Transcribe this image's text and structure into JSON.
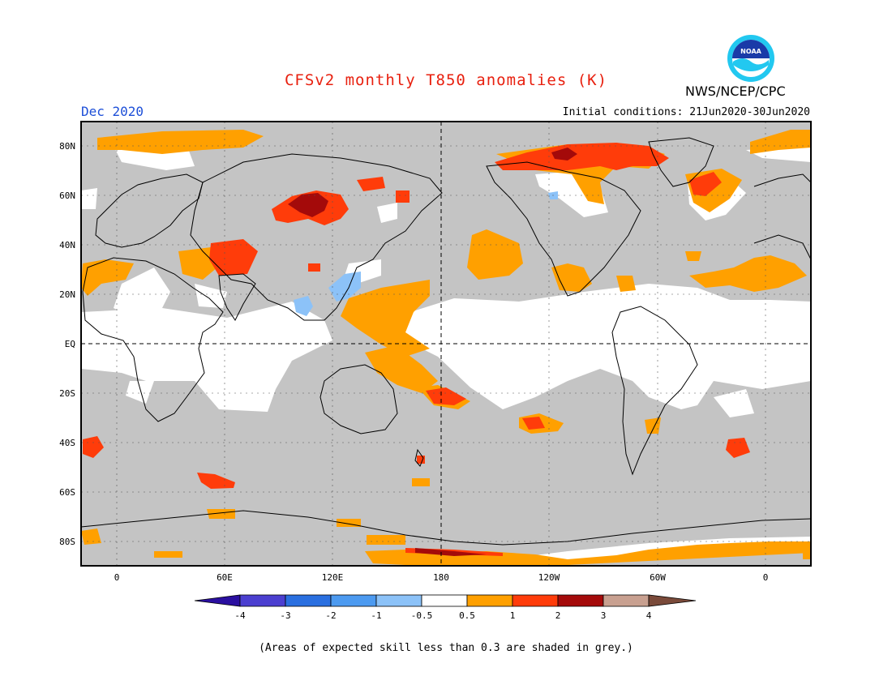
{
  "title": "CFSv2 monthly T850 anomalies (K)",
  "valid_month": "Dec 2020",
  "initial_conditions": "Initial conditions: 21Jun2020-30Jun2020",
  "organization": "NWS/NCEP/CPC",
  "logo_text": "NOAA",
  "footnote": "(Areas of expected skill less than 0.3 are shaded in grey.)",
  "colors": {
    "grey": "#c4c4c4",
    "neutral": "#ffffff",
    "c_m4": "#2a0fa0",
    "c_m3": "#4b3fd0",
    "c_m2": "#2a6fe0",
    "c_m1": "#4c9af0",
    "c_m05": "#8cc2f8",
    "c_05": "#ffa000",
    "c_1": "#ff3c0a",
    "c_2": "#a40a0a",
    "c_3": "#c8a090",
    "c_4": "#7a4a3a"
  },
  "map": {
    "lat_labels": [
      "80N",
      "60N",
      "40N",
      "20N",
      "EQ",
      "20S",
      "40S",
      "60S",
      "80S"
    ],
    "lon_labels": [
      "0",
      "60E",
      "120E",
      "180",
      "120W",
      "60W",
      "0"
    ]
  },
  "colorbar": {
    "labels": [
      "-4",
      "-3",
      "-2",
      "-1",
      "-0.5",
      "0.5",
      "1",
      "2",
      "3",
      "4"
    ]
  }
}
